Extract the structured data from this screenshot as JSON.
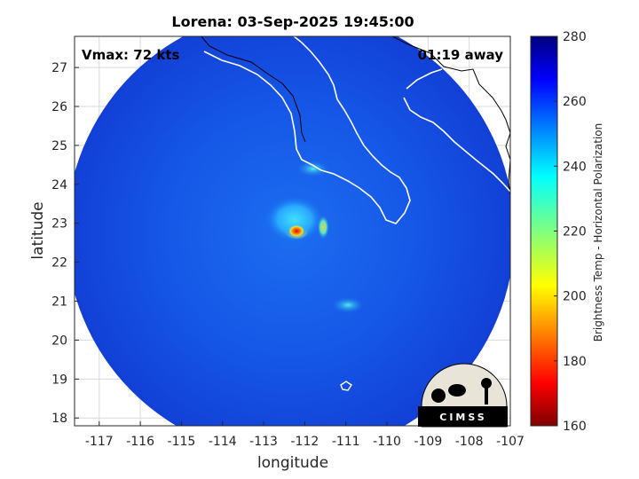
{
  "chart_data": {
    "type": "heatmap",
    "title": "Lorena: 03-Sep-2025 19:45:00",
    "xlabel": "longitude",
    "ylabel": "latitude",
    "xlim": [
      -117.6,
      -107
    ],
    "ylim": [
      17.8,
      27.8
    ],
    "x_ticks": [
      -117,
      -116,
      -115,
      -114,
      -113,
      -112,
      -111,
      -110,
      -109,
      -108,
      -107
    ],
    "y_ticks": [
      18,
      19,
      20,
      21,
      22,
      23,
      24,
      25,
      26,
      27
    ],
    "grid": true,
    "vmax_text": "Vmax: 72 kts",
    "time_text": "01:19 away",
    "storm_center": {
      "lon": -112.2,
      "lat": 22.8
    },
    "swath_center": {
      "lon": -112.35,
      "lat": 22.75
    },
    "swath_radius_deg": 5.45,
    "colorbar": {
      "label": "Brightness Temp - Horizontal Polarization",
      "min": 160,
      "max": 280,
      "ticks": [
        160,
        180,
        200,
        220,
        240,
        260,
        280
      ],
      "colormap": "jet"
    },
    "features": [
      {
        "name": "eyewall",
        "lon": -112.2,
        "lat": 22.8,
        "value": 172
      },
      {
        "name": "inner-band",
        "lon": -112.25,
        "lat": 23.1,
        "value": 228
      },
      {
        "name": "outer-band-east",
        "lon": -111.55,
        "lat": 22.9,
        "value": 218
      },
      {
        "name": "band-north",
        "lon": -111.8,
        "lat": 24.4,
        "value": 238
      },
      {
        "name": "cell-south",
        "lon": -110.95,
        "lat": 20.9,
        "value": 238
      }
    ]
  },
  "logo": {
    "text": "CIMSS"
  },
  "colors": {
    "axes_border": "#262626",
    "grid": "#d9d9d9",
    "coastline": "#ffffff",
    "land_outline": "#000000"
  }
}
